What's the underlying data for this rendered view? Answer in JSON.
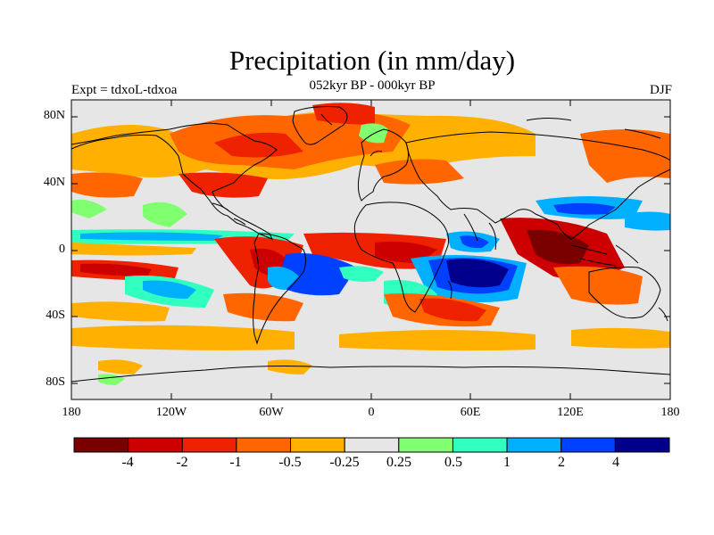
{
  "title": "Precipitation (in mm/day)",
  "subtitle": "052kyr BP - 000kyr BP",
  "left_label": "Expt = tdxoL-tdxoa",
  "right_label": "DJF",
  "lat_ticks": [
    "80N",
    "40N",
    "0",
    "40S",
    "80S"
  ],
  "lon_ticks": [
    "180",
    "120W",
    "60W",
    "0",
    "60E",
    "120E",
    "180"
  ],
  "colorbar": {
    "colors": [
      "#7a0000",
      "#cc0000",
      "#ee2200",
      "#ff6600",
      "#ffb000",
      "#e6e6e6",
      "#80ff70",
      "#30ffc0",
      "#00b0ff",
      "#0040ff",
      "#00008c"
    ],
    "labels": [
      "-4",
      "-2",
      "-1",
      "-0.5",
      "-0.25",
      "0.25",
      "0.5",
      "1",
      "2",
      "4"
    ]
  }
}
